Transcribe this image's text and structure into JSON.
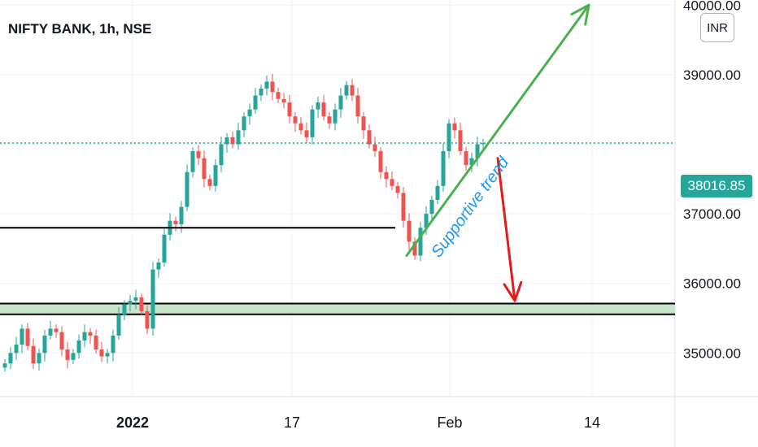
{
  "header": {
    "symbol_title": "NIFTY BANK, 1h, NSE",
    "currency_button": "INR"
  },
  "price_badge": "38016.85",
  "annotation": "Supportive trend",
  "colors": {
    "up": "#26a69a",
    "down": "#ef5350",
    "arrow_up": "#4caf50",
    "arrow_down": "#e31b1b",
    "annotation": "#2196f3",
    "zone_fill": "#c8e6c9"
  },
  "chart_data": {
    "type": "candlestick",
    "title": "NIFTY BANK, 1h, NSE",
    "ylim": [
      34700,
      40400
    ],
    "y_ticks": [
      "40000.00",
      "39000.00",
      "37000.00",
      "36000.00",
      "35000.00"
    ],
    "x_ticks": [
      {
        "label": "2022",
        "bold": true
      },
      {
        "label": "17",
        "bold": false
      },
      {
        "label": "Feb",
        "bold": false
      },
      {
        "label": "14",
        "bold": false
      }
    ],
    "last_price": 38016.85,
    "close_series": [
      34850,
      35000,
      35120,
      35350,
      35100,
      34850,
      35000,
      35250,
      35350,
      35300,
      35050,
      34900,
      35000,
      35180,
      35300,
      35250,
      35050,
      34950,
      35000,
      35250,
      35550,
      35700,
      35750,
      35800,
      35600,
      35350,
      36200,
      36300,
      36700,
      36900,
      36850,
      37100,
      37600,
      37900,
      37800,
      37500,
      37400,
      37700,
      38000,
      38100,
      38000,
      38200,
      38400,
      38500,
      38700,
      38800,
      38900,
      38750,
      38650,
      38600,
      38400,
      38300,
      38200,
      38100,
      38500,
      38600,
      38400,
      38300,
      38500,
      38700,
      38850,
      38700,
      38400,
      38200,
      38000,
      37900,
      37600,
      37500,
      37400,
      37300,
      36900,
      36600,
      36400,
      36800,
      37000,
      37200,
      37400,
      37900,
      38300,
      38200,
      37900,
      37700,
      37800,
      38000,
      38016.85
    ],
    "support_lines": [
      {
        "value": 36800,
        "to_index": 69
      },
      {
        "value": 35550,
        "to_index": 104
      }
    ],
    "support_zone": [
      35555,
      35710
    ],
    "trend_up": {
      "from": [
        71,
        36400
      ],
      "to": [
        103,
        40000
      ]
    },
    "trend_down": {
      "from": [
        87,
        37800
      ],
      "to": [
        90,
        35750
      ]
    }
  }
}
